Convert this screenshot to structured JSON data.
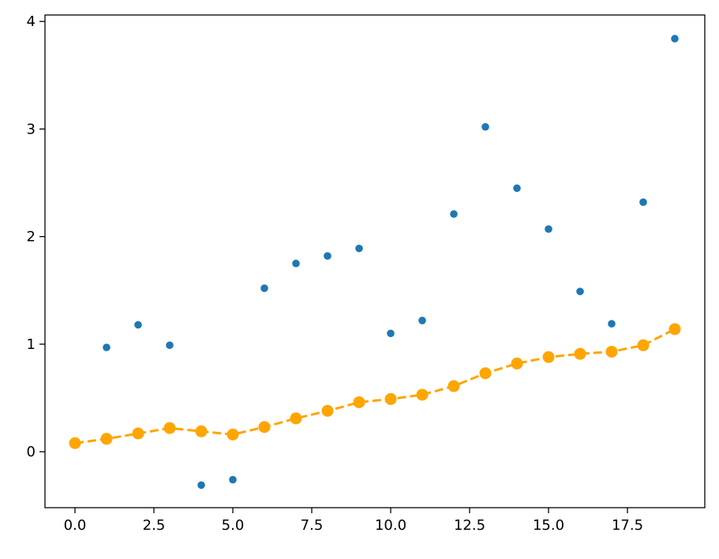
{
  "chart_data": {
    "type": "scatter",
    "title": "",
    "xlabel": "",
    "ylabel": "",
    "xlim": [
      -0.95,
      19.95
    ],
    "ylim": [
      -0.52,
      4.06
    ],
    "grid": false,
    "x_ticks": [
      "0.0",
      "2.5",
      "5.0",
      "7.5",
      "10.0",
      "12.5",
      "15.0",
      "17.5"
    ],
    "y_ticks": [
      "0",
      "1",
      "2",
      "3",
      "4"
    ],
    "series": [
      {
        "style": "points",
        "color": "#1f77b4",
        "x": [
          1,
          2,
          3,
          4,
          5,
          6,
          7,
          8,
          9,
          10,
          11,
          12,
          13,
          14,
          15,
          16,
          17,
          18,
          19
        ],
        "y": [
          0.97,
          1.18,
          0.99,
          -0.31,
          -0.26,
          1.52,
          1.75,
          1.82,
          1.89,
          1.1,
          1.22,
          2.21,
          3.02,
          2.45,
          2.07,
          1.49,
          1.19,
          2.32,
          3.84
        ]
      },
      {
        "style": "dashed-line-with-markers",
        "color": "#ffa500",
        "x": [
          0,
          1,
          2,
          3,
          4,
          5,
          6,
          7,
          8,
          9,
          10,
          11,
          12,
          13,
          14,
          15,
          16,
          17,
          18,
          19
        ],
        "y": [
          0.08,
          0.12,
          0.17,
          0.22,
          0.19,
          0.16,
          0.23,
          0.31,
          0.38,
          0.46,
          0.49,
          0.53,
          0.61,
          0.73,
          0.82,
          0.88,
          0.91,
          0.93,
          0.99,
          1.14
        ]
      }
    ]
  }
}
